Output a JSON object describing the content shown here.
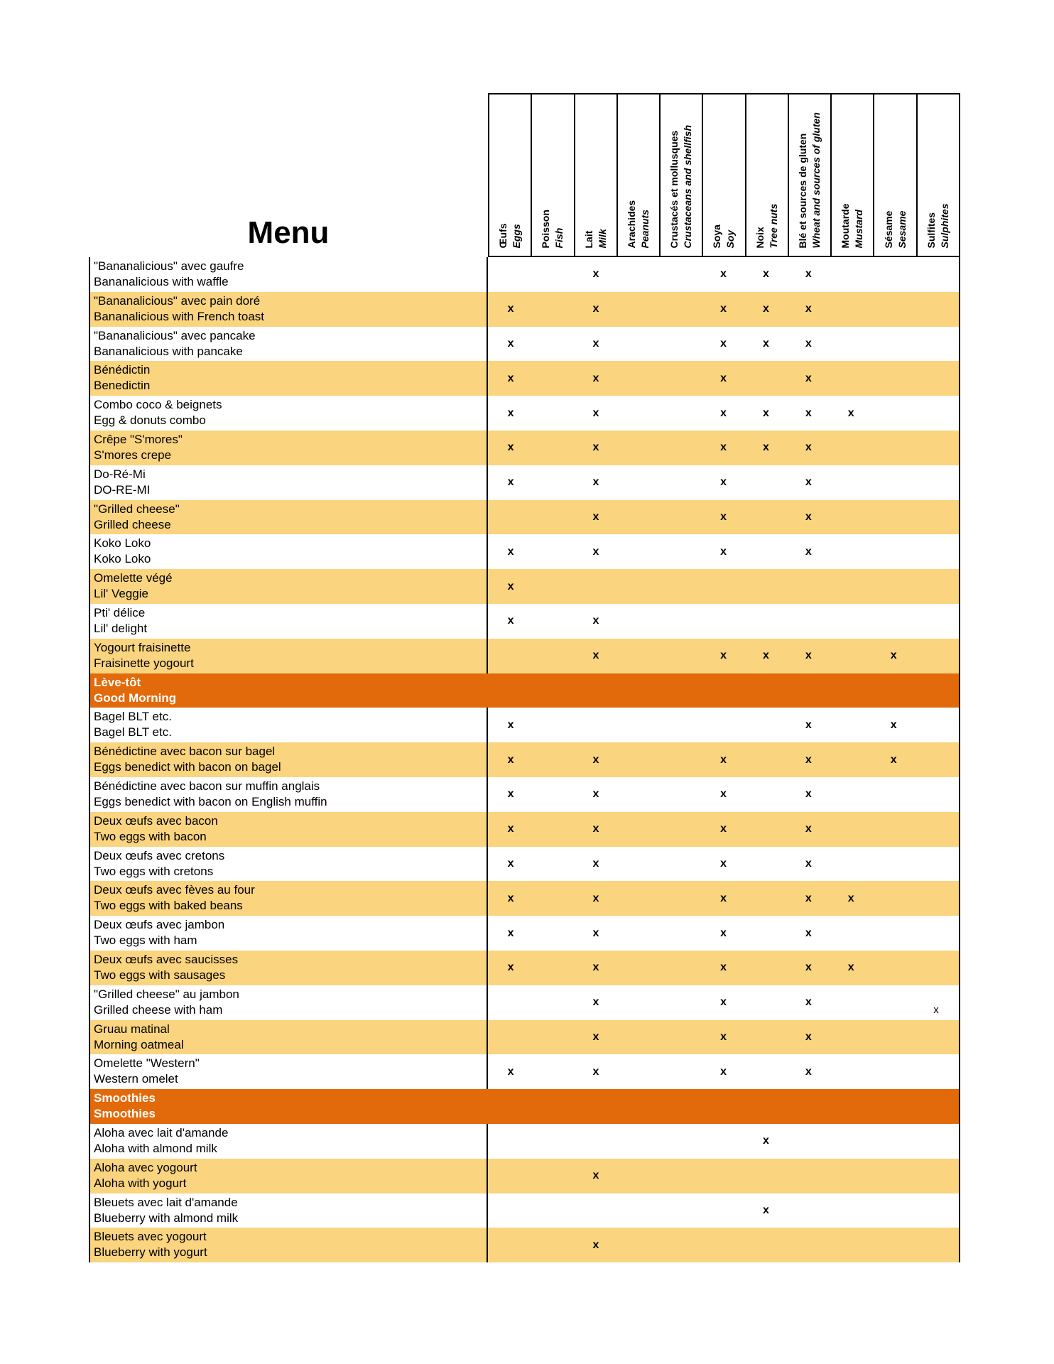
{
  "title": "Menu",
  "mark_glyph": "x",
  "colors": {
    "section_bg": "#E26A0B",
    "alt_row_bg": "#FAD47F",
    "row_bg": "#FFFFFF",
    "section_text": "#FFFFFF",
    "text": "#000000",
    "border": "#000000"
  },
  "columns": [
    {
      "fr": "Œufs",
      "en": "Eggs"
    },
    {
      "fr": "Poisson",
      "en": "Fish"
    },
    {
      "fr": "Lait",
      "en": "Milk"
    },
    {
      "fr": "Arachides",
      "en": "Peanuts"
    },
    {
      "fr": "Crustacés et  mollusques",
      "en": "Crustaceans and shellfish"
    },
    {
      "fr": "Soya",
      "en": "Soy"
    },
    {
      "fr": "Noix",
      "en": "Tree nuts"
    },
    {
      "fr": "Blé et sources de gluten",
      "en": "Wheat and sources of gluten"
    },
    {
      "fr": "Moutarde",
      "en": "Mustard"
    },
    {
      "fr": "Sésame",
      "en": "Sesame"
    },
    {
      "fr": "Sulfites",
      "en": "Sulphites"
    }
  ],
  "rows": [
    {
      "type": "item",
      "fr": "\"Bananalicious\" avec gaufre",
      "en": "Bananalicious with waffle",
      "marks": [
        2,
        5,
        6,
        7
      ]
    },
    {
      "type": "item",
      "fr": "\"Bananalicious\" avec pain doré",
      "en": "Bananalicious with French toast",
      "marks": [
        0,
        2,
        5,
        6,
        7
      ]
    },
    {
      "type": "item",
      "fr": "\"Bananalicious\" avec pancake",
      "en": "Bananalicious with pancake",
      "marks": [
        0,
        2,
        5,
        6,
        7
      ]
    },
    {
      "type": "item",
      "fr": "Bénédictin",
      "en": "Benedictin",
      "marks": [
        0,
        2,
        5,
        7
      ]
    },
    {
      "type": "item",
      "fr": "Combo coco & beignets",
      "en": "Egg & donuts combo",
      "marks": [
        0,
        2,
        5,
        6,
        7,
        8
      ]
    },
    {
      "type": "item",
      "fr": "Crêpe \"S'mores\"",
      "en": "S'mores crepe",
      "marks": [
        0,
        2,
        5,
        6,
        7
      ]
    },
    {
      "type": "item",
      "fr": "Do-Ré-Mi",
      "en": "DO-RE-MI",
      "marks": [
        0,
        2,
        5,
        7
      ]
    },
    {
      "type": "item",
      "fr": "\"Grilled cheese\"",
      "en": "Grilled cheese",
      "marks": [
        2,
        5,
        7
      ]
    },
    {
      "type": "item",
      "fr": "Koko Loko",
      "en": "Koko Loko",
      "marks": [
        0,
        2,
        5,
        7
      ]
    },
    {
      "type": "item",
      "fr": "Omelette végé",
      "en": "Lil' Veggie",
      "marks": [
        0
      ]
    },
    {
      "type": "item",
      "fr": "Pti' délice",
      "en": "Lil' delight",
      "marks": [
        0,
        2
      ]
    },
    {
      "type": "item",
      "fr": "Yogourt fraisinette",
      "en": "Fraisinette yogourt",
      "marks": [
        2,
        5,
        6,
        7,
        9
      ]
    },
    {
      "type": "section",
      "fr": "Lève-tôt",
      "en": "Good Morning"
    },
    {
      "type": "item",
      "fr": "Bagel BLT etc.",
      "en": "Bagel BLT etc.",
      "marks": [
        0,
        7,
        9
      ]
    },
    {
      "type": "item",
      "fr": "Bénédictine avec bacon sur bagel",
      "en": "Eggs benedict with bacon on bagel",
      "marks": [
        0,
        2,
        5,
        7,
        9
      ]
    },
    {
      "type": "item",
      "fr": "Bénédictine avec bacon sur muffin anglais",
      "en": "Eggs benedict with bacon on English muffin",
      "marks": [
        0,
        2,
        5,
        7
      ]
    },
    {
      "type": "item",
      "fr": "Deux œufs avec bacon",
      "en": "Two eggs with bacon",
      "marks": [
        0,
        2,
        5,
        7
      ]
    },
    {
      "type": "item",
      "fr": "Deux œufs avec cretons",
      "en": "Two eggs with cretons",
      "marks": [
        0,
        2,
        5,
        7
      ]
    },
    {
      "type": "item",
      "fr": "Deux œufs avec fèves au four",
      "en": "Two eggs with baked beans",
      "marks": [
        0,
        2,
        5,
        7,
        8
      ]
    },
    {
      "type": "item",
      "fr": "Deux œufs avec jambon",
      "en": "Two eggs with ham",
      "marks": [
        0,
        2,
        5,
        7
      ]
    },
    {
      "type": "item",
      "fr": "Deux œufs avec saucisses",
      "en": "Two eggs with sausages",
      "marks": [
        0,
        2,
        5,
        7,
        8
      ]
    },
    {
      "type": "item",
      "fr": "\"Grilled cheese\" au jambon",
      "en": "Grilled cheese with ham",
      "marks": [
        2,
        5,
        7
      ],
      "marks_low": [
        10
      ]
    },
    {
      "type": "item",
      "fr": "Gruau matinal",
      "en": "Morning oatmeal",
      "marks": [
        2,
        5,
        7
      ]
    },
    {
      "type": "item",
      "fr": "Omelette \"Western\"",
      "en": "Western omelet",
      "marks": [
        0,
        2,
        5,
        7
      ]
    },
    {
      "type": "section",
      "fr": "Smoothies",
      "en": "Smoothies"
    },
    {
      "type": "item",
      "fr": "Aloha avec lait d'amande",
      "en": "Aloha with almond milk",
      "marks": [
        6
      ]
    },
    {
      "type": "item",
      "fr": "Aloha avec yogourt",
      "en": "Aloha with yogurt",
      "marks": [
        2
      ]
    },
    {
      "type": "item",
      "fr": "Bleuets avec lait d'amande",
      "en": "Blueberry with almond milk",
      "marks": [
        6
      ]
    },
    {
      "type": "item",
      "fr": "Bleuets avec yogourt",
      "en": "Blueberry with yogurt",
      "marks": [
        2
      ]
    }
  ]
}
